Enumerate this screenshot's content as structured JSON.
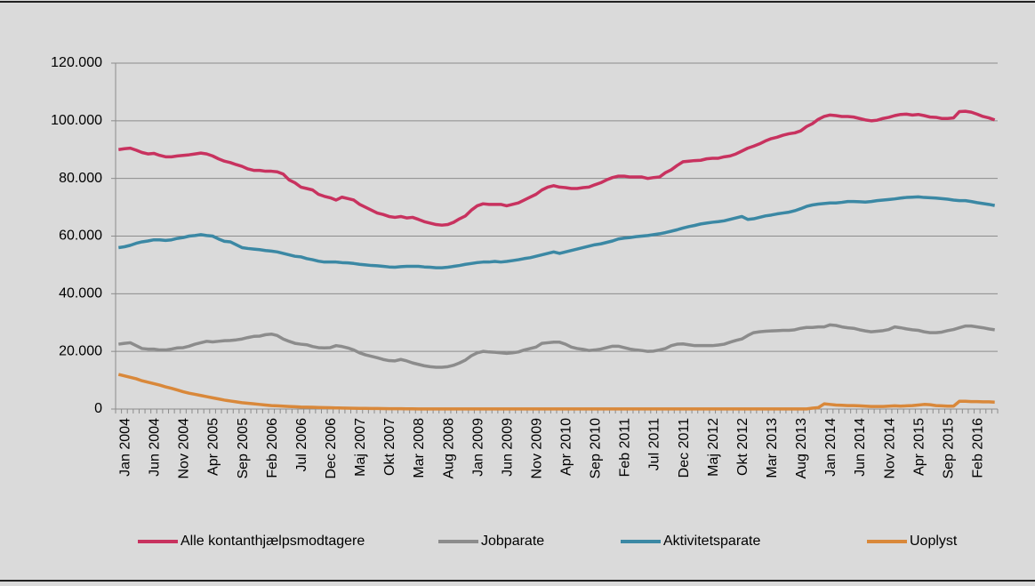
{
  "chart_data": {
    "type": "line",
    "categories": [
      "Jan 2004",
      null,
      null,
      null,
      null,
      "Jun 2004",
      null,
      null,
      null,
      null,
      "Nov 2004",
      null,
      null,
      null,
      null,
      "Apr 2005",
      null,
      null,
      null,
      null,
      "Sep 2005",
      null,
      null,
      null,
      null,
      "Feb 2006",
      null,
      null,
      null,
      null,
      "Jul 2006",
      null,
      null,
      null,
      null,
      "Dec 2006",
      null,
      null,
      null,
      null,
      "Maj 2007",
      null,
      null,
      null,
      null,
      "Okt 2007",
      null,
      null,
      null,
      null,
      "Mar 2008",
      null,
      null,
      null,
      null,
      "Aug 2008",
      null,
      null,
      null,
      null,
      "Jan 2009",
      null,
      null,
      null,
      null,
      "Jun 2009",
      null,
      null,
      null,
      null,
      "Nov 2009",
      null,
      null,
      null,
      null,
      "Apr 2010",
      null,
      null,
      null,
      null,
      "Sep 2010",
      null,
      null,
      null,
      null,
      "Feb 2011",
      null,
      null,
      null,
      null,
      "Jul 2011",
      null,
      null,
      null,
      null,
      "Dec 2011",
      null,
      null,
      null,
      null,
      "Maj 2012",
      null,
      null,
      null,
      null,
      "Okt 2012",
      null,
      null,
      null,
      null,
      "Mar 2013",
      null,
      null,
      null,
      null,
      "Aug 2013",
      null,
      null,
      null,
      null,
      "Jan 2014",
      null,
      null,
      null,
      null,
      "Jun 2014",
      null,
      null,
      null,
      null,
      "Nov 2014",
      null,
      null,
      null,
      null,
      "Apr 2015",
      null,
      null,
      null,
      null,
      "Sep 2015",
      null,
      null,
      null,
      null,
      "Feb 2016",
      null,
      null,
      null,
      null
    ],
    "series": [
      {
        "name": "Alle kontanthjælpsmodtagere",
        "color": "#c8325f",
        "values": [
          90000,
          90300,
          90500,
          89800,
          89000,
          88500,
          88700,
          88000,
          87500,
          87500,
          87800,
          88000,
          88200,
          88500,
          88800,
          88500,
          87800,
          86800,
          86000,
          85500,
          84800,
          84200,
          83300,
          82800,
          82800,
          82500,
          82500,
          82300,
          81500,
          79500,
          78500,
          77000,
          76500,
          76000,
          74500,
          73800,
          73300,
          72500,
          73500,
          73000,
          72500,
          71000,
          70000,
          69000,
          68000,
          67500,
          66800,
          66500,
          66800,
          66300,
          66500,
          65800,
          65000,
          64500,
          64000,
          63800,
          64000,
          64800,
          66000,
          67000,
          69000,
          70500,
          71200,
          71000,
          71000,
          71000,
          70500,
          71000,
          71500,
          72500,
          73500,
          74500,
          76000,
          77000,
          77500,
          77000,
          76800,
          76500,
          76500,
          76800,
          77000,
          77800,
          78500,
          79500,
          80300,
          80800,
          80800,
          80500,
          80500,
          80500,
          80000,
          80300,
          80500,
          82000,
          83000,
          84500,
          85800,
          86000,
          86200,
          86300,
          86800,
          87000,
          87000,
          87500,
          87800,
          88500,
          89500,
          90500,
          91200,
          92000,
          93000,
          93800,
          94300,
          95000,
          95500,
          95800,
          96500,
          98000,
          99000,
          100500,
          101500,
          102000,
          101800,
          101500,
          101500,
          101300,
          100800,
          100300,
          100000,
          100200,
          100800,
          101200,
          101800,
          102200,
          102300,
          102000,
          102200,
          101800,
          101300,
          101200,
          100800,
          100800,
          101000,
          103200,
          103300,
          103000,
          102300,
          101500,
          101000,
          100300
        ]
      },
      {
        "name": "Jobparate",
        "color": "#8c8c8c",
        "values": [
          22500,
          22800,
          23000,
          22000,
          21000,
          20800,
          20800,
          20500,
          20500,
          20800,
          21200,
          21300,
          21800,
          22500,
          23000,
          23500,
          23300,
          23500,
          23700,
          23800,
          24000,
          24300,
          24800,
          25200,
          25300,
          25800,
          26000,
          25500,
          24300,
          23500,
          22800,
          22500,
          22300,
          21700,
          21300,
          21200,
          21300,
          22000,
          21700,
          21200,
          20500,
          19500,
          18800,
          18300,
          17800,
          17200,
          16800,
          16700,
          17200,
          16700,
          16000,
          15500,
          15000,
          14700,
          14500,
          14500,
          14700,
          15200,
          16000,
          17000,
          18500,
          19500,
          20000,
          19800,
          19700,
          19500,
          19300,
          19500,
          19800,
          20500,
          21000,
          21500,
          22800,
          23000,
          23200,
          23200,
          22500,
          21500,
          21000,
          20700,
          20300,
          20500,
          20800,
          21300,
          21800,
          21800,
          21300,
          20800,
          20500,
          20300,
          20000,
          20100,
          20500,
          21000,
          22000,
          22500,
          22600,
          22300,
          22000,
          22000,
          22000,
          22000,
          22200,
          22500,
          23200,
          23800,
          24300,
          25500,
          26500,
          26800,
          27000,
          27100,
          27200,
          27300,
          27300,
          27500,
          28000,
          28300,
          28300,
          28500,
          28500,
          29200,
          29000,
          28500,
          28200,
          28000,
          27500,
          27100,
          26800,
          27000,
          27200,
          27600,
          28500,
          28200,
          27800,
          27500,
          27300,
          26800,
          26500,
          26500,
          26700,
          27200,
          27600,
          28200,
          28800,
          28800,
          28500,
          28200,
          27800,
          27500
        ]
      },
      {
        "name": "Aktivitetsparate",
        "color": "#3b88a4",
        "values": [
          56000,
          56300,
          56800,
          57500,
          58000,
          58300,
          58700,
          58700,
          58500,
          58700,
          59200,
          59500,
          60000,
          60200,
          60500,
          60200,
          60000,
          59000,
          58200,
          58000,
          57000,
          56000,
          55700,
          55500,
          55300,
          55000,
          54800,
          54500,
          54000,
          53500,
          53000,
          52800,
          52200,
          51800,
          51300,
          51000,
          51000,
          51000,
          50800,
          50700,
          50500,
          50200,
          50000,
          49800,
          49700,
          49500,
          49300,
          49200,
          49400,
          49500,
          49500,
          49500,
          49300,
          49200,
          49000,
          49000,
          49200,
          49500,
          49800,
          50200,
          50500,
          50800,
          51000,
          51000,
          51200,
          51000,
          51200,
          51500,
          51800,
          52200,
          52500,
          53000,
          53500,
          54000,
          54500,
          54000,
          54500,
          55000,
          55500,
          56000,
          56500,
          57000,
          57300,
          57800,
          58300,
          59000,
          59300,
          59500,
          59800,
          60000,
          60200,
          60500,
          60800,
          61200,
          61700,
          62200,
          62800,
          63300,
          63700,
          64200,
          64500,
          64800,
          65000,
          65300,
          65800,
          66300,
          66800,
          65800,
          66000,
          66500,
          67000,
          67300,
          67700,
          68000,
          68300,
          68800,
          69500,
          70300,
          70800,
          71100,
          71300,
          71500,
          71500,
          71700,
          72000,
          72000,
          71900,
          71800,
          72000,
          72300,
          72500,
          72700,
          72900,
          73200,
          73400,
          73500,
          73600,
          73400,
          73300,
          73200,
          73000,
          72800,
          72500,
          72300,
          72300,
          72000,
          71600,
          71300,
          71000,
          70600
        ]
      },
      {
        "name": "Uoplyst",
        "color": "#d9883a",
        "values": [
          12000,
          11500,
          11000,
          10500,
          9800,
          9300,
          8800,
          8300,
          7700,
          7200,
          6600,
          6000,
          5500,
          5100,
          4700,
          4300,
          3900,
          3500,
          3100,
          2800,
          2500,
          2200,
          2000,
          1800,
          1600,
          1400,
          1200,
          1100,
          1000,
          900,
          800,
          700,
          650,
          600,
          550,
          500,
          450,
          400,
          350,
          300,
          280,
          250,
          220,
          200,
          180,
          150,
          130,
          110,
          100,
          90,
          80,
          50,
          50,
          50,
          50,
          50,
          50,
          50,
          50,
          50,
          50,
          50,
          50,
          50,
          50,
          50,
          50,
          50,
          50,
          50,
          50,
          50,
          50,
          50,
          50,
          50,
          50,
          50,
          50,
          50,
          50,
          50,
          50,
          50,
          50,
          50,
          50,
          50,
          50,
          50,
          50,
          50,
          50,
          50,
          50,
          50,
          50,
          50,
          50,
          50,
          50,
          50,
          50,
          50,
          50,
          50,
          50,
          50,
          50,
          50,
          50,
          50,
          50,
          50,
          50,
          50,
          50,
          50,
          300,
          500,
          1800,
          1600,
          1400,
          1300,
          1200,
          1200,
          1100,
          1000,
          900,
          900,
          900,
          1000,
          1100,
          1000,
          1100,
          1200,
          1400,
          1600,
          1500,
          1200,
          1100,
          1000,
          1000,
          2700,
          2700,
          2600,
          2600,
          2500,
          2500,
          2400
        ]
      }
    ],
    "ylim": [
      0,
      120000
    ],
    "yticks": [
      0,
      {
        "value": 20000,
        "label": "20.000"
      },
      {
        "value": 40000,
        "label": "40.000"
      },
      {
        "value": 60000,
        "label": "60.000"
      },
      {
        "value": 80000,
        "label": "80.000"
      },
      {
        "value": 100000,
        "label": "100.000"
      },
      {
        "value": 120000,
        "label": "120.000"
      }
    ],
    "grid": true,
    "legend": "bottom"
  }
}
